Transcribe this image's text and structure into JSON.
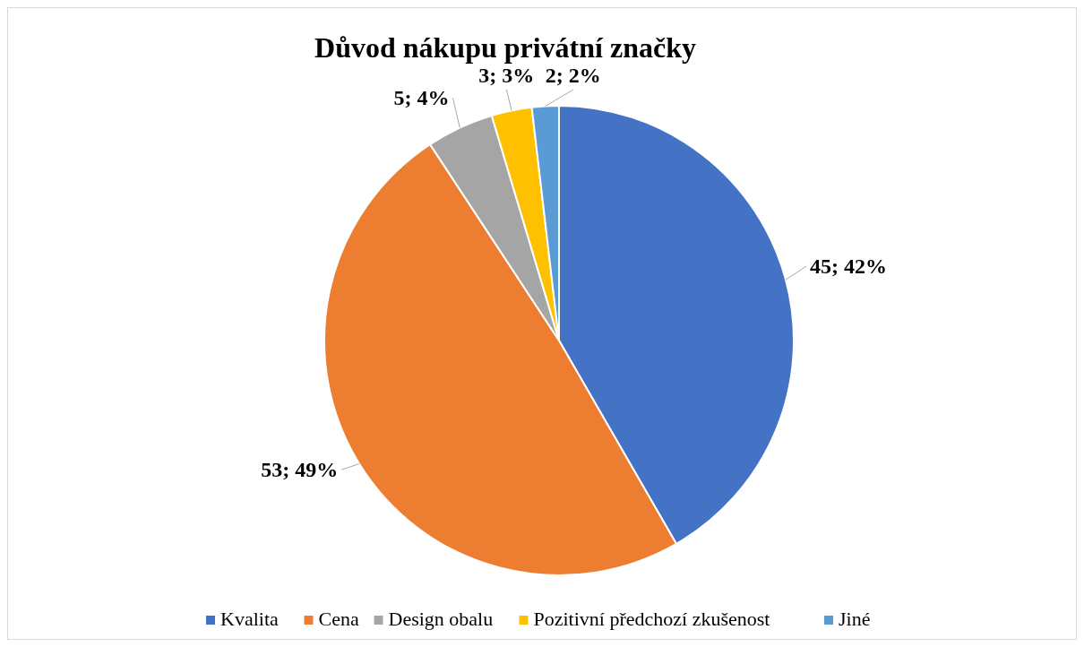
{
  "chart_data": {
    "type": "pie",
    "title": "Důvod nákupu privátní značky",
    "categories": [
      "Kvalita",
      "Cena",
      "Design obalu",
      "Pozitivní předchozí zkušenost",
      "Jiné"
    ],
    "values": [
      45,
      53,
      5,
      3,
      2
    ],
    "colors": [
      "#4472c4",
      "#ed7d31",
      "#a5a5a5",
      "#ffc000",
      "#5b9bd5"
    ],
    "value_labels": [
      "45; 42%",
      "53; 49%",
      "5; 4%",
      "3; 3%",
      "2; 2%"
    ],
    "legend": "bottom"
  }
}
